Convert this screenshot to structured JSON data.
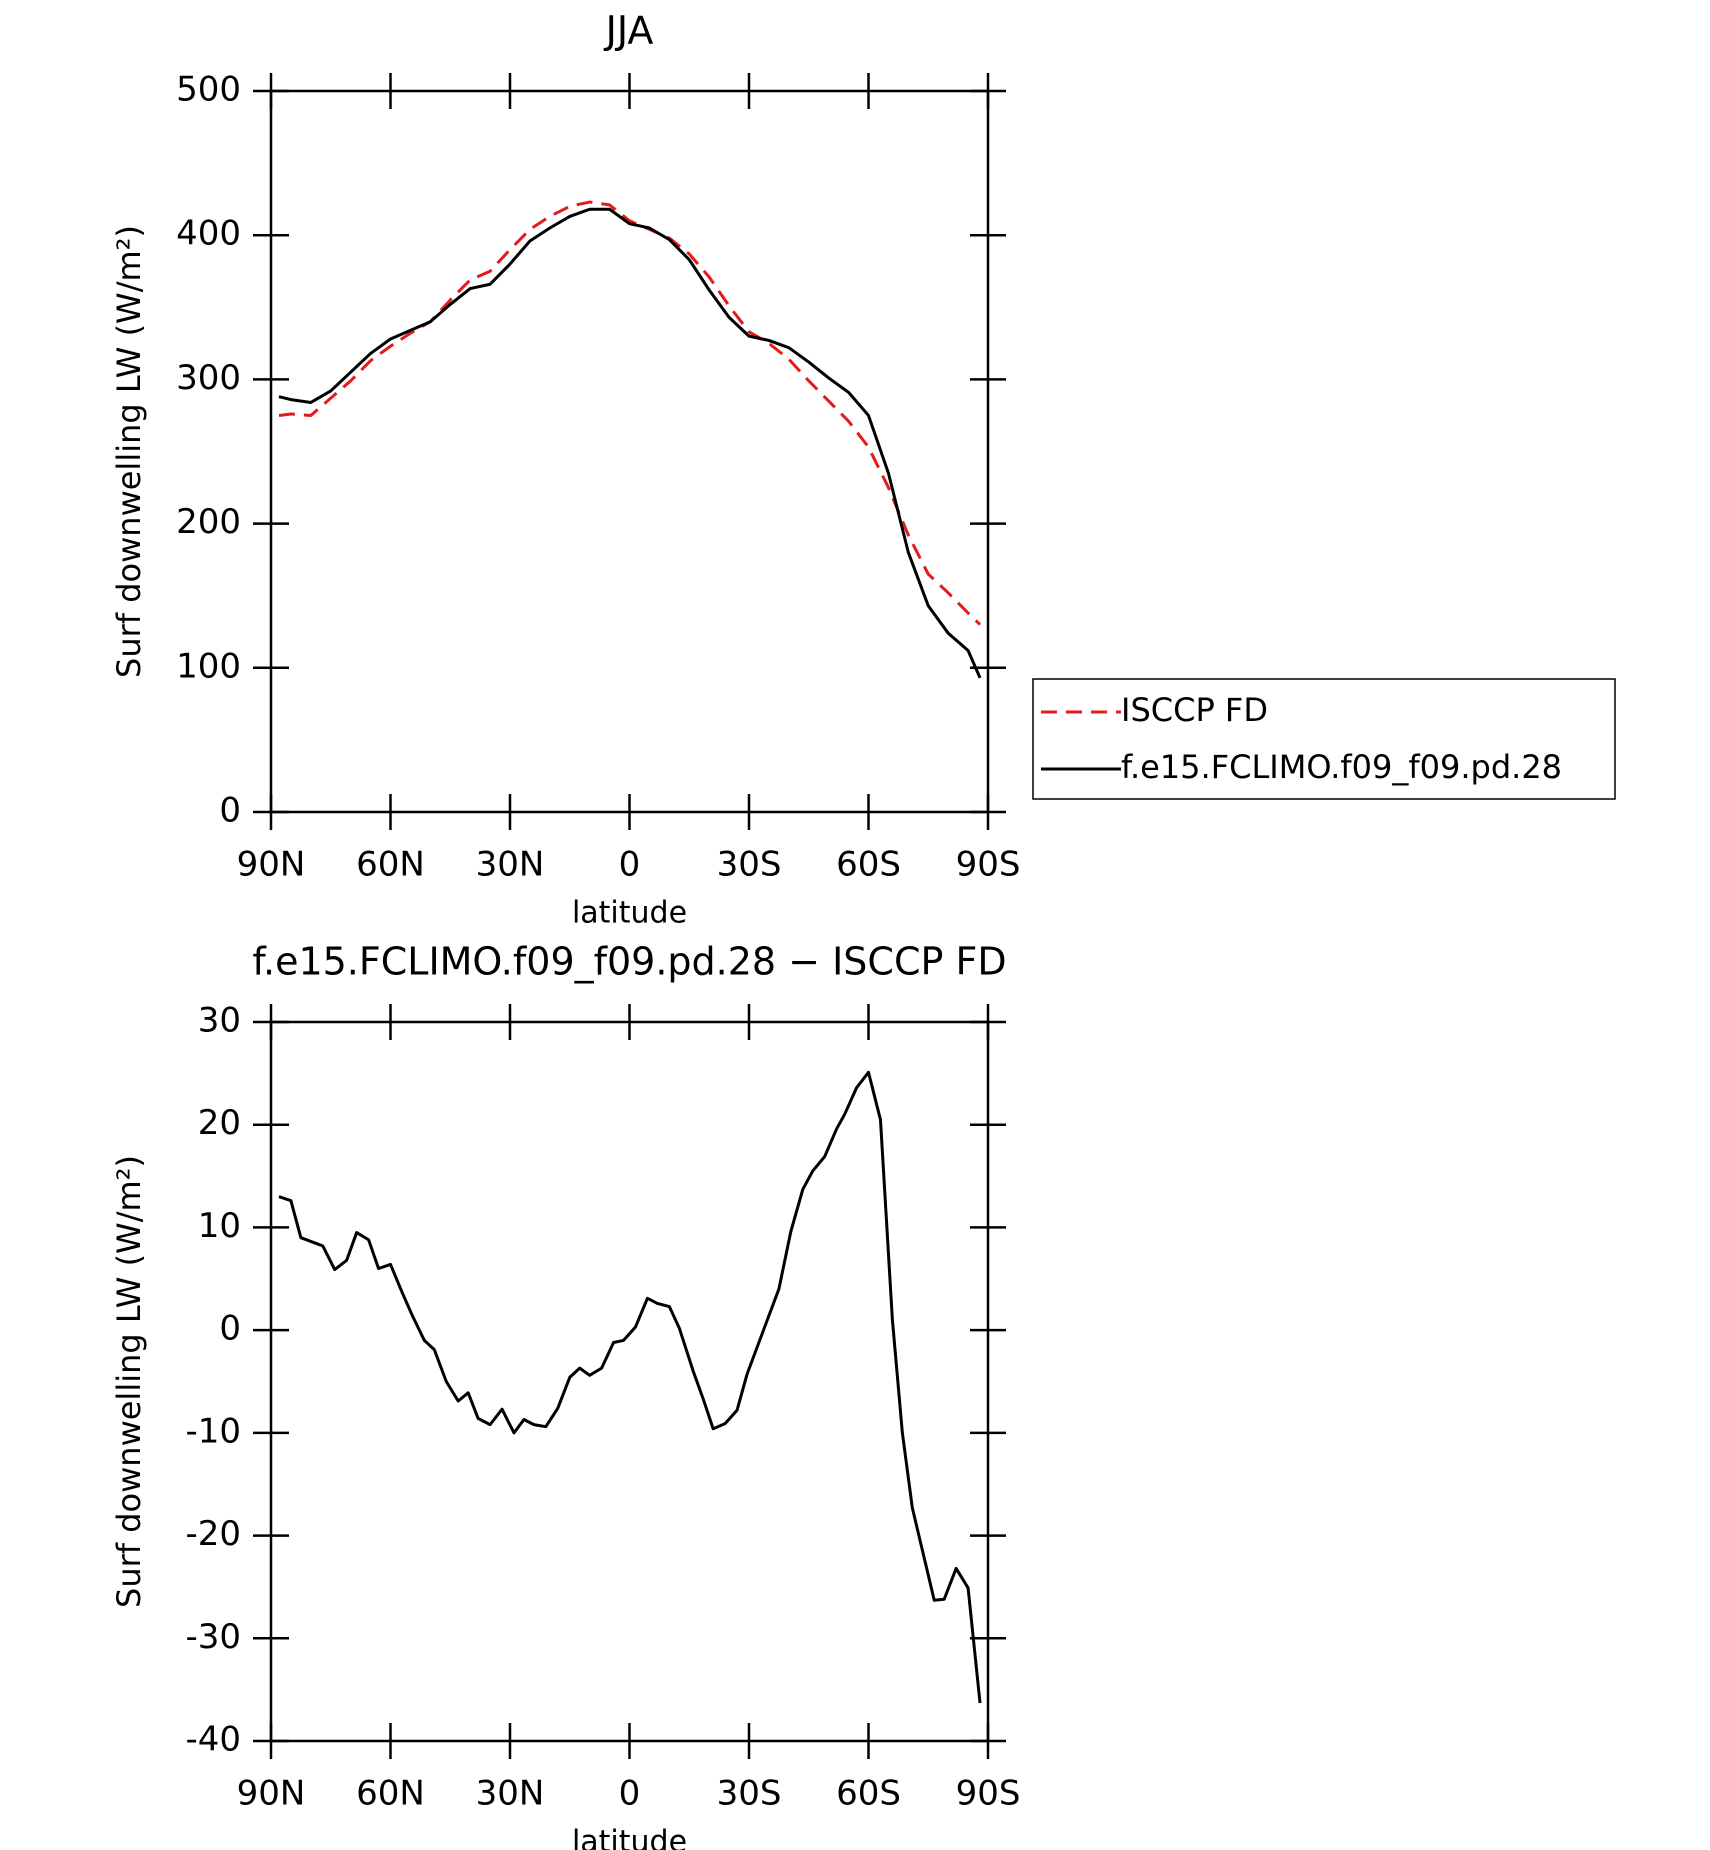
{
  "chart_data": [
    {
      "type": "line",
      "title": "JJA",
      "xlabel": "latitude",
      "ylabel": "Surf downwelling LW (W/m²)",
      "x": [
        88,
        85,
        80,
        75,
        70,
        65,
        60,
        55,
        50,
        45,
        40,
        35,
        30,
        25,
        20,
        15,
        10,
        5,
        0,
        -5,
        -10,
        -15,
        -20,
        -25,
        -30,
        -35,
        -40,
        -45,
        -50,
        -55,
        -60,
        -65,
        -70,
        -75,
        -80,
        -85,
        -88
      ],
      "series": [
        {
          "name": "ISCCP FD",
          "color": "#e41a1c",
          "dash": true,
          "values": [
            275,
            276,
            275,
            287,
            299,
            313,
            323,
            332,
            340,
            355,
            369,
            375,
            390,
            404,
            413,
            420,
            423,
            421,
            410,
            404,
            398,
            387,
            371,
            351,
            333,
            325,
            314,
            299,
            285,
            271,
            253,
            225,
            192,
            165,
            152,
            138,
            130
          ]
        },
        {
          "name": "f.e15.FCLIMO.f09_f09.pd.28",
          "color": "#000000",
          "dash": false,
          "values": [
            288,
            286,
            284,
            292,
            305,
            318,
            328,
            334,
            340,
            352,
            363,
            366,
            380,
            396,
            405,
            413,
            418,
            418,
            408,
            405,
            397,
            383,
            362,
            343,
            330,
            327,
            322,
            312,
            301,
            291,
            275,
            235,
            180,
            143,
            124,
            112,
            93
          ]
        }
      ],
      "xlim": [
        90,
        -90
      ],
      "xticks": [
        {
          "value": 90,
          "label": "90N"
        },
        {
          "value": 60,
          "label": "60N"
        },
        {
          "value": 30,
          "label": "30N"
        },
        0,
        {
          "value": -30,
          "label": "30S"
        },
        {
          "value": -60,
          "label": "60S"
        },
        {
          "value": -90,
          "label": "90S"
        }
      ],
      "ylim": [
        0,
        500
      ],
      "yticks": [
        0,
        100,
        200,
        300,
        400,
        500
      ],
      "legend": "right"
    },
    {
      "type": "line",
      "title": "f.e15.FCLIMO.f09_f09.pd.28 − ISCCP FD",
      "xlabel": "latitude",
      "ylabel": "Surf downwelling LW (W/m²)",
      "x": [
        88,
        85,
        82.5,
        77,
        74,
        71,
        68.5,
        65.5,
        63,
        60,
        57,
        54.5,
        51.5,
        49,
        46,
        43,
        40.5,
        38,
        35,
        32,
        29,
        26.5,
        24,
        21,
        18,
        15,
        12.5,
        10,
        7,
        4,
        1.5,
        -1.5,
        -4.5,
        -7,
        -10,
        -12.5,
        -16,
        -18.5,
        -21,
        -24,
        -27,
        -29.5,
        -32,
        -37.5,
        -40.5,
        -43.5,
        -46,
        -49,
        -52,
        -54,
        -57,
        -60,
        -63,
        -66,
        -68.5,
        -71,
        -74,
        -76.5,
        -79,
        -82,
        -85,
        -88
      ],
      "series": [
        {
          "color": "#000000",
          "values": [
            13,
            12.6,
            9,
            8.2,
            5.9,
            6.8,
            9.5,
            8.8,
            6,
            6.4,
            3.6,
            1.4,
            -1,
            -1.9,
            -5,
            -6.9,
            -6.1,
            -8.6,
            -9.2,
            -7.7,
            -10,
            -8.7,
            -9.2,
            -9.4,
            -7.6,
            -4.6,
            -3.7,
            -4.4,
            -3.7,
            -1.2,
            -1,
            0.3,
            3.1,
            2.6,
            2.3,
            0.2,
            -4,
            -6.7,
            -9.6,
            -9.1,
            -7.8,
            -4.3,
            -1.7,
            4,
            9.6,
            13.7,
            15.5,
            16.9,
            19.6,
            21,
            23.6,
            25.1,
            20.5,
            1,
            -10,
            -17.3,
            -22.2,
            -26.3,
            -26.2,
            -23.2,
            -25.1,
            -36.3
          ]
        }
      ],
      "xlim": [
        90,
        -90
      ],
      "xticks": [
        {
          "value": 90,
          "label": "90N"
        },
        {
          "value": 60,
          "label": "60N"
        },
        {
          "value": 30,
          "label": "30N"
        },
        0,
        {
          "value": -30,
          "label": "30S"
        },
        {
          "value": -60,
          "label": "60S"
        },
        {
          "value": -90,
          "label": "90S"
        }
      ],
      "ylim": [
        -40,
        30
      ],
      "yticks": [
        -40,
        -30,
        -20,
        -10,
        0,
        10,
        20,
        30
      ]
    }
  ]
}
